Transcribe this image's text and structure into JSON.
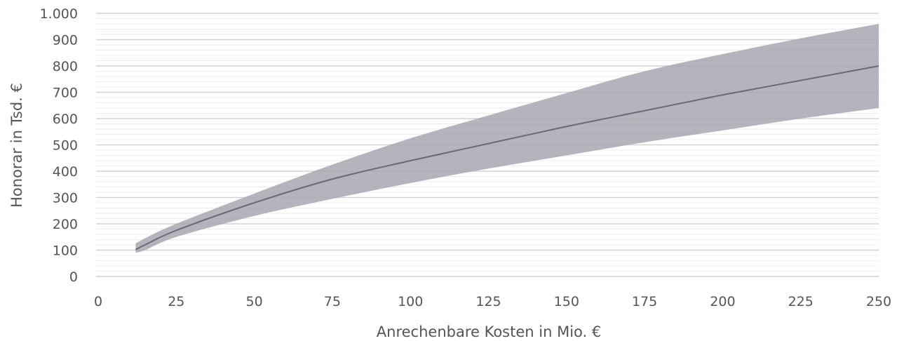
{
  "chart_data": {
    "type": "area",
    "xlabel": "Anrechenbare Kosten in Mio. €",
    "ylabel": "Honorar in Tsd. €",
    "xlim": [
      0,
      250
    ],
    "ylim": [
      0,
      1000
    ],
    "x_ticks": [
      0,
      25,
      50,
      75,
      100,
      125,
      150,
      175,
      200,
      225,
      250
    ],
    "x_tick_labels": [
      "0",
      "25",
      "50",
      "75",
      "100",
      "125",
      "150",
      "175",
      "200",
      "225",
      "250"
    ],
    "y_ticks": [
      0,
      100,
      200,
      300,
      400,
      500,
      600,
      700,
      800,
      900,
      1000
    ],
    "y_tick_labels": [
      "0",
      "100",
      "200",
      "300",
      "400",
      "500",
      "600",
      "700",
      "800",
      "900",
      "1.000"
    ],
    "grid": true,
    "legend": "none",
    "colors": {
      "band": "#a9a6b2",
      "line": "#6b6877",
      "grid_major": "#d4d4d8",
      "grid_minor": "#ececef",
      "text": "#555555"
    },
    "series": [
      {
        "role": "band_upper",
        "x": [
          12,
          15,
          25,
          50,
          75,
          100,
          125,
          150,
          175,
          200,
          225,
          250
        ],
        "values": [
          125,
          145,
          200,
          315,
          425,
          525,
          612,
          697,
          780,
          845,
          905,
          960
        ]
      },
      {
        "role": "line",
        "x": [
          12,
          15,
          25,
          50,
          75,
          100,
          125,
          150,
          175,
          200,
          225,
          250
        ],
        "values": [
          102,
          120,
          175,
          280,
          370,
          440,
          505,
          570,
          630,
          690,
          745,
          800
        ]
      },
      {
        "role": "band_lower",
        "x": [
          12,
          15,
          25,
          50,
          75,
          100,
          125,
          150,
          175,
          200,
          225,
          250
        ],
        "values": [
          90,
          100,
          150,
          230,
          295,
          355,
          410,
          460,
          510,
          555,
          600,
          640
        ]
      }
    ]
  }
}
